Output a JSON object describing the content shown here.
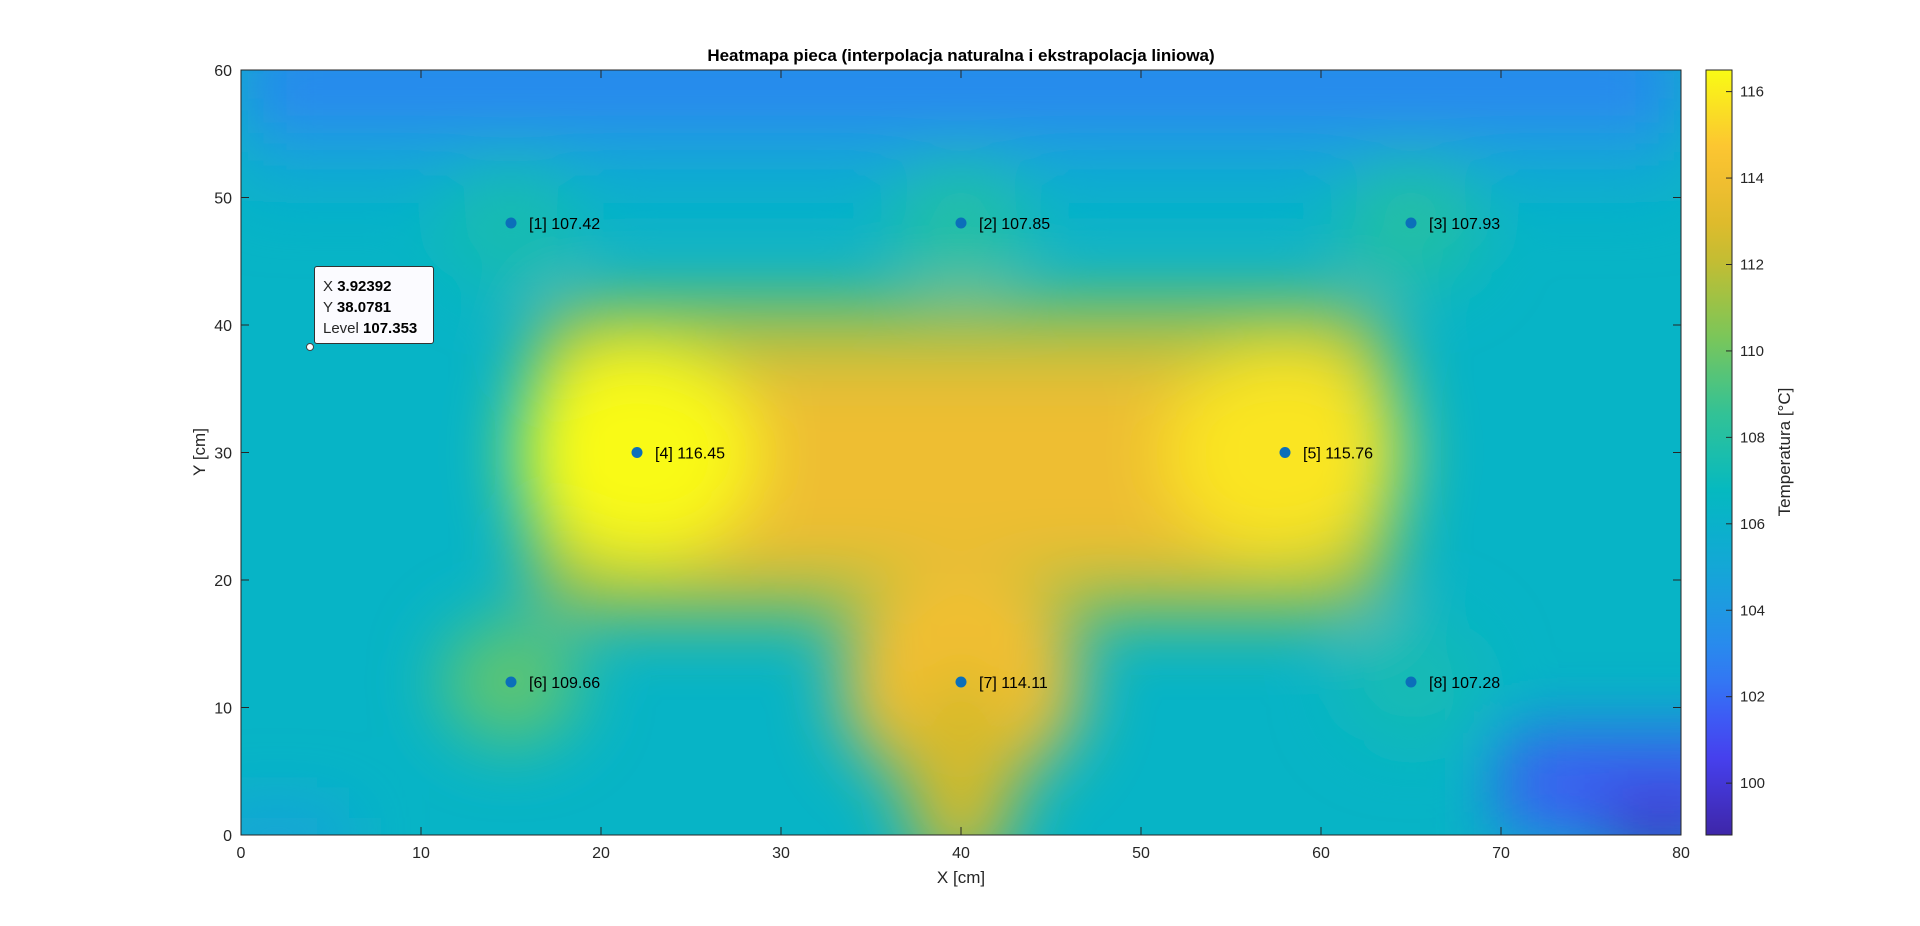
{
  "chart_data": {
    "type": "heatmap",
    "title": "Heatmapa pieca (interpolacja naturalna i ekstrapolacja liniowa)",
    "xlabel": "X [cm]",
    "ylabel": "Y [cm]",
    "xlim": [
      0,
      80
    ],
    "ylim": [
      0,
      60
    ],
    "xticks": [
      0,
      10,
      20,
      30,
      40,
      50,
      60,
      70,
      80
    ],
    "yticks": [
      0,
      10,
      20,
      30,
      40,
      50,
      60
    ],
    "colorbar": {
      "label": "Temperatura [°C]",
      "clim": [
        98.8,
        116.5
      ],
      "ticks": [
        100,
        102,
        104,
        106,
        108,
        110,
        112,
        114,
        116
      ],
      "colormap": "parula"
    },
    "points": [
      {
        "id": 1,
        "label": "[1] 107.42",
        "x": 15,
        "y": 48,
        "value": 107.42
      },
      {
        "id": 2,
        "label": "[2] 107.85",
        "x": 40,
        "y": 48,
        "value": 107.85
      },
      {
        "id": 3,
        "label": "[3] 107.93",
        "x": 65,
        "y": 48,
        "value": 107.93
      },
      {
        "id": 4,
        "label": "[4] 116.45",
        "x": 22,
        "y": 30,
        "value": 116.45
      },
      {
        "id": 5,
        "label": "[5] 115.76",
        "x": 58,
        "y": 30,
        "value": 115.76
      },
      {
        "id": 6,
        "label": "[6] 109.66",
        "x": 15,
        "y": 12,
        "value": 109.66
      },
      {
        "id": 7,
        "label": "[7] 114.11",
        "x": 40,
        "y": 12,
        "value": 114.11
      },
      {
        "id": 8,
        "label": "[8] 107.28",
        "x": 65,
        "y": 12,
        "value": 107.28
      }
    ],
    "datatip": {
      "x": 3.92392,
      "y": 38.0781,
      "level": 107.353,
      "x_key": "X",
      "y_key": "Y",
      "level_key": "Level",
      "x_text": "3.92392",
      "y_text": "38.0781",
      "level_text": "107.353"
    }
  },
  "colors": {
    "marker": "#0b6fba",
    "parula": [
      "#3e26a8",
      "#4743f5",
      "#2e83f3",
      "#17a4da",
      "#03b8c2",
      "#34c394",
      "#86c650",
      "#d7ba2a",
      "#fcc034",
      "#f9fb15"
    ]
  }
}
